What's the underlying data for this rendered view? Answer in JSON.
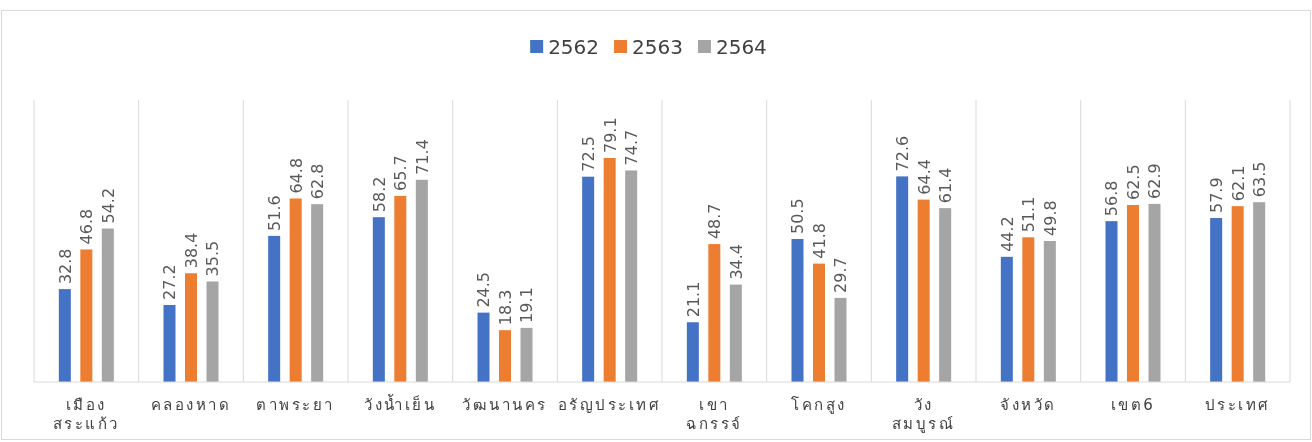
{
  "chart_data": {
    "type": "bar",
    "categories": [
      "เมือง สระแก้ว",
      "คลองหาด",
      "ตาพระยา",
      "วังน้ำเย็น",
      "วัฒนานคร",
      "อรัญประเทศ",
      "เขาฉกรรจ์",
      "โคกสูง",
      "วังสมบูรณ์",
      "จังหวัด",
      "เขต6",
      "ประเทศ"
    ],
    "series": [
      {
        "name": "2562",
        "color": "#4472c4",
        "values": [
          32.8,
          27.2,
          51.6,
          58.2,
          24.5,
          72.5,
          21.1,
          50.5,
          72.6,
          44.2,
          56.8,
          57.9
        ]
      },
      {
        "name": "2563",
        "color": "#ed7d31",
        "values": [
          46.8,
          38.4,
          64.8,
          65.7,
          18.3,
          79.1,
          48.7,
          41.8,
          64.4,
          51.1,
          62.5,
          62.1
        ]
      },
      {
        "name": "2564",
        "color": "#a5a5a5",
        "values": [
          54.2,
          35.5,
          62.8,
          71.4,
          19.1,
          74.7,
          34.4,
          29.7,
          61.4,
          49.8,
          62.9,
          63.5
        ]
      }
    ],
    "data_labels": true,
    "grid": "x",
    "legend": "top"
  }
}
